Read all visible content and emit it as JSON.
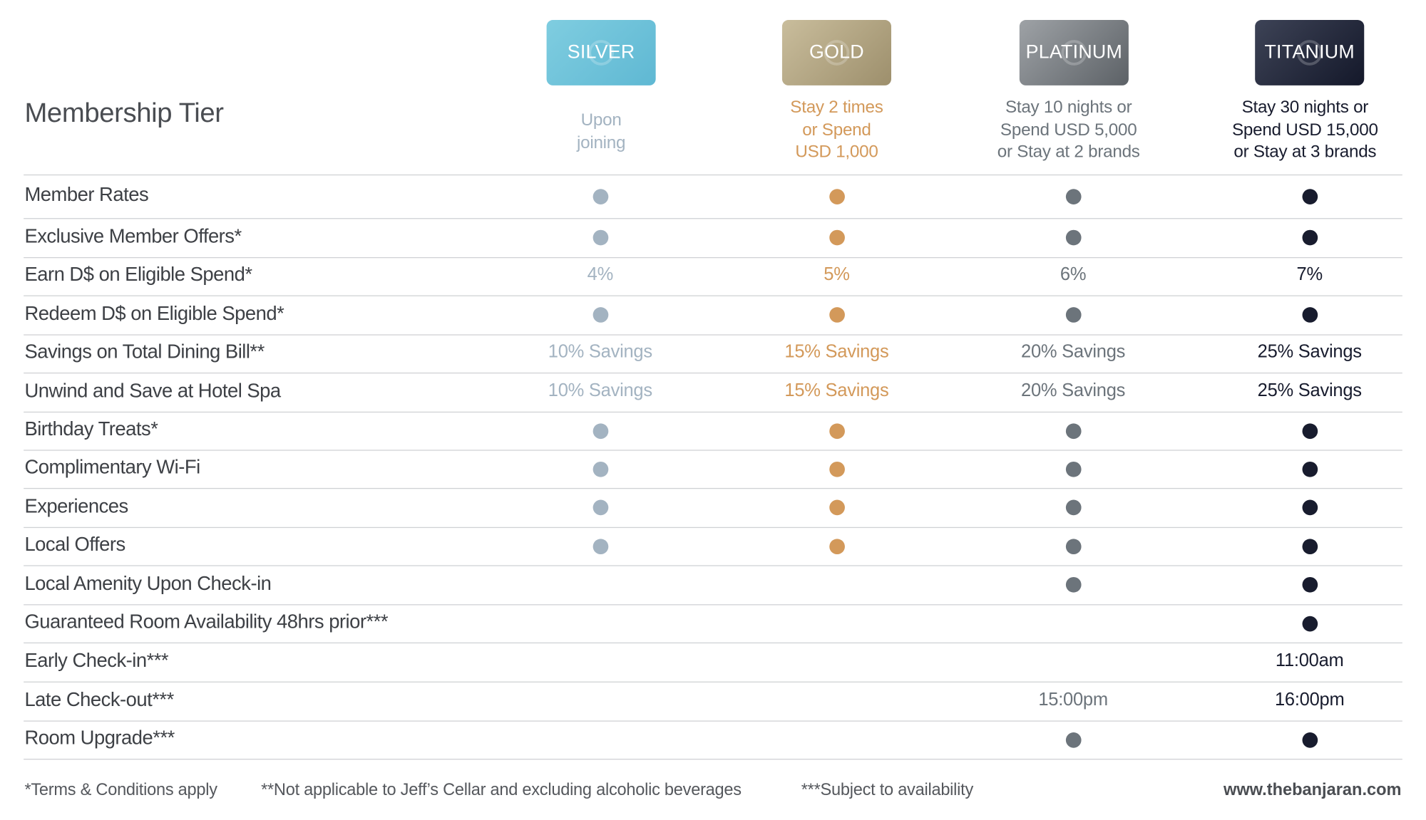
{
  "header": {
    "title": "Membership Tier"
  },
  "tiers": [
    {
      "name": "SILVER",
      "requirement": "Upon\njoining",
      "color": "#a3b3c1",
      "card_colors": [
        "#7fcde0",
        "#5fb8d3"
      ]
    },
    {
      "name": "GOLD",
      "requirement": "Stay 2 times\nor Spend\nUSD 1,000",
      "color": "#d3995a",
      "card_colors": [
        "#c9bd9c",
        "#9d8f6c"
      ]
    },
    {
      "name": "PLATINUM",
      "requirement": "Stay 10 nights or\nSpend USD 5,000\nor Stay at 2 brands",
      "color": "#6c747b",
      "card_colors": [
        "#9ea2a6",
        "#5c6166"
      ]
    },
    {
      "name": "TITANIUM",
      "requirement": "Stay 30 nights or\nSpend USD 15,000\nor Stay at 3 brands",
      "color": "#181c2e",
      "card_colors": [
        "#3d4356",
        "#14182a"
      ]
    }
  ],
  "rows": [
    {
      "label": "Member Rates",
      "cells": [
        "dot",
        "dot",
        "dot",
        "dot"
      ]
    },
    {
      "label": "Exclusive Member Offers*",
      "cells": [
        "dot",
        "dot",
        "dot",
        "dot"
      ]
    },
    {
      "label": "Earn D$ on Eligible Spend*",
      "cells": [
        "4%",
        "5%",
        "6%",
        "7%"
      ]
    },
    {
      "label": "Redeem D$ on Eligible Spend*",
      "cells": [
        "dot",
        "dot",
        "dot",
        "dot"
      ]
    },
    {
      "label": "Savings on Total Dining Bill**",
      "cells": [
        "10% Savings",
        "15% Savings",
        "20% Savings",
        "25% Savings"
      ]
    },
    {
      "label": "Unwind and Save at Hotel Spa",
      "cells": [
        "10% Savings",
        "15% Savings",
        "20% Savings",
        "25% Savings"
      ]
    },
    {
      "label": "Birthday Treats*",
      "cells": [
        "dot",
        "dot",
        "dot",
        "dot"
      ]
    },
    {
      "label": "Complimentary Wi-Fi",
      "cells": [
        "dot",
        "dot",
        "dot",
        "dot"
      ]
    },
    {
      "label": "Experiences",
      "cells": [
        "dot",
        "dot",
        "dot",
        "dot"
      ]
    },
    {
      "label": "Local Offers",
      "cells": [
        "dot",
        "dot",
        "dot",
        "dot"
      ]
    },
    {
      "label": "Local Amenity Upon Check-in",
      "cells": [
        "",
        "",
        "dot",
        "dot"
      ]
    },
    {
      "label": "Guaranteed Room Availability 48hrs prior***",
      "cells": [
        "",
        "",
        "",
        "dot"
      ]
    },
    {
      "label": "Early Check-in***",
      "cells": [
        "",
        "",
        "",
        "11:00am"
      ]
    },
    {
      "label": "Late Check-out***",
      "cells": [
        "",
        "",
        "15:00pm",
        "16:00pm"
      ]
    },
    {
      "label": "Room Upgrade***",
      "cells": [
        "",
        "",
        "dot",
        "dot"
      ]
    }
  ],
  "footer": {
    "notes": [
      "*Terms & Conditions apply",
      "**Not applicable to Jeff’s Cellar and excluding alcoholic beverages",
      "***Subject to availability"
    ],
    "website": "www.thebanjaran.com"
  }
}
